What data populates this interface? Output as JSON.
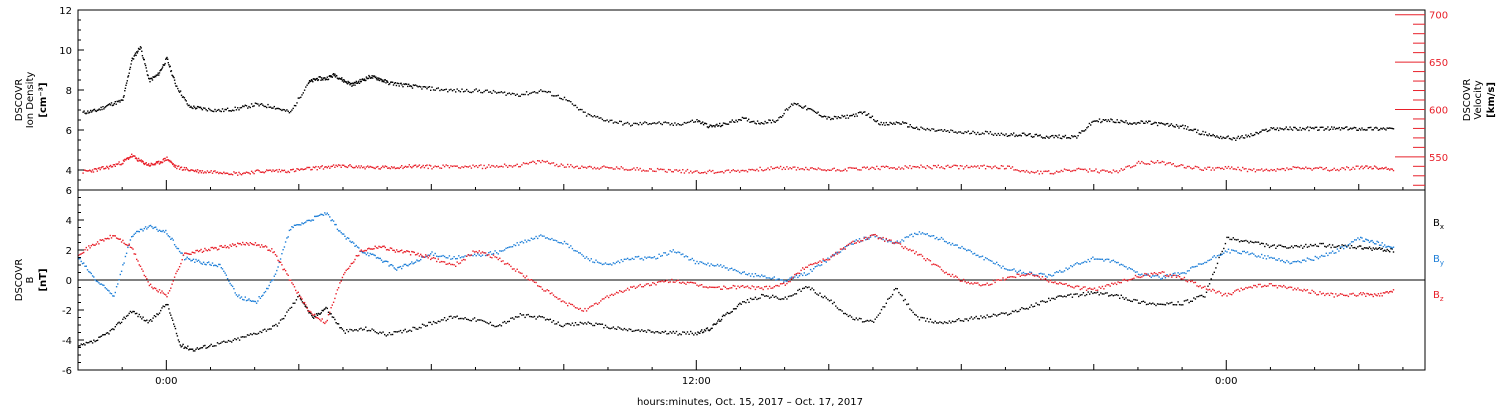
{
  "chart_data": [
    {
      "type": "scatter",
      "panel": "top",
      "ylabel_left": [
        "DSCOVR",
        "Ion Density",
        "[cm⁻³]"
      ],
      "ylabel_right": [
        "DSCOVR",
        "Velocity",
        "[km/s]"
      ],
      "ylim_left": [
        3,
        12
      ],
      "yticks_left": [
        4,
        6,
        8,
        10,
        12
      ],
      "ylim_right": [
        515,
        705
      ],
      "yticks_right": [
        550,
        600,
        650,
        700
      ],
      "colors": {
        "density": "#000000",
        "velocity": "#e8202a"
      },
      "series": [
        {
          "axis": "left",
          "color": "#000000",
          "x": [
            -1.9,
            -1.6,
            -1.3,
            -1.0,
            -0.8,
            -0.6,
            -0.4,
            -0.2,
            0.0,
            0.2,
            0.5,
            0.8,
            1.2,
            1.6,
            2.0,
            2.4,
            2.8,
            3.2,
            3.4,
            3.6,
            3.8,
            4.0,
            4.2,
            4.4,
            4.6,
            4.8,
            5.0,
            5.3,
            5.6,
            6.0,
            6.5,
            7.0,
            7.5,
            8.0,
            8.5,
            9.0,
            9.5,
            10.0,
            10.5,
            11.0,
            11.5,
            12.0,
            12.3,
            12.6,
            13.0,
            13.4,
            13.8,
            14.2,
            14.6,
            15.0,
            15.4,
            15.8,
            16.2,
            16.6,
            17.0,
            17.5,
            18.0,
            18.5,
            19.0,
            19.4,
            19.8,
            20.2,
            20.6,
            21.0,
            21.4,
            21.8,
            22.2,
            22.6,
            23.0,
            23.4,
            23.8,
            24.2,
            24.6,
            25.0,
            25.4,
            25.8,
            26.2,
            26.6,
            27.0,
            27.4,
            27.8
          ],
          "y": [
            6.9,
            7.0,
            7.3,
            7.5,
            9.5,
            10.2,
            8.5,
            8.8,
            9.6,
            8.3,
            7.2,
            7.1,
            7.0,
            7.1,
            7.3,
            7.2,
            6.9,
            8.4,
            8.6,
            8.6,
            8.8,
            8.5,
            8.3,
            8.5,
            8.7,
            8.6,
            8.4,
            8.3,
            8.2,
            8.1,
            8.0,
            8.0,
            7.9,
            7.8,
            8.0,
            7.6,
            6.8,
            6.5,
            6.3,
            6.4,
            6.3,
            6.5,
            6.2,
            6.3,
            6.6,
            6.4,
            6.5,
            7.4,
            7.0,
            6.6,
            6.7,
            6.9,
            6.3,
            6.4,
            6.1,
            6.0,
            5.9,
            5.9,
            5.8,
            5.8,
            5.7,
            5.7,
            5.7,
            6.5,
            6.5,
            6.4,
            6.4,
            6.3,
            6.2,
            5.9,
            5.7,
            5.6,
            5.8,
            6.1,
            6.1,
            6.1,
            6.1,
            6.1,
            6.1,
            6.1,
            6.1
          ]
        },
        {
          "axis": "right",
          "color": "#e8202a",
          "x": [
            -1.9,
            -1.6,
            -1.3,
            -1.0,
            -0.8,
            -0.6,
            -0.4,
            -0.2,
            0.0,
            0.2,
            0.5,
            0.8,
            1.2,
            1.6,
            2.0,
            2.4,
            2.8,
            3.2,
            3.6,
            4.0,
            4.4,
            4.8,
            5.2,
            5.6,
            6.0,
            6.5,
            7.0,
            7.5,
            8.0,
            8.5,
            9.0,
            9.5,
            10.0,
            10.5,
            11.0,
            11.5,
            12.0,
            12.5,
            13.0,
            13.5,
            14.0,
            14.5,
            15.0,
            15.5,
            16.0,
            16.5,
            17.0,
            17.5,
            18.0,
            18.5,
            19.0,
            19.5,
            20.0,
            20.5,
            21.0,
            21.5,
            22.0,
            22.5,
            23.0,
            23.5,
            24.0,
            24.5,
            25.0,
            25.5,
            26.0,
            26.5,
            27.0,
            27.4,
            27.8
          ],
          "y": [
            535,
            537,
            540,
            545,
            552,
            546,
            542,
            544,
            549,
            540,
            537,
            535,
            535,
            533,
            535,
            536,
            536,
            538,
            540,
            541,
            540,
            539,
            540,
            541,
            540,
            541,
            540,
            541,
            542,
            546,
            541,
            540,
            539,
            538,
            537,
            536,
            535,
            535,
            536,
            538,
            539,
            538,
            537,
            538,
            539,
            539,
            540,
            540,
            540,
            540,
            540,
            535,
            534,
            537,
            536,
            535,
            544,
            545,
            541,
            538,
            539,
            537,
            536,
            539,
            538,
            537,
            540,
            539,
            538
          ]
        }
      ]
    },
    {
      "type": "scatter",
      "panel": "bottom",
      "ylabel": [
        "DSCOVR",
        "B",
        "[nT]"
      ],
      "ylim": [
        -6,
        6
      ],
      "yticks": [
        -6,
        -4,
        -2,
        0,
        2,
        4,
        6
      ],
      "zero_line": true,
      "xlabel": "hours:minutes, Oct. 15, 2017 – Oct. 17, 2017",
      "xtick_labels": [
        "0:00",
        "12:00",
        "0:00"
      ],
      "xtick_hours": [
        0,
        12,
        24
      ],
      "xlim_hours": [
        -2.0,
        28.5
      ],
      "legend": [
        "Bx",
        "By",
        "Bz"
      ],
      "legend_position": "right",
      "series": [
        {
          "name": "Bx",
          "color": "#000000",
          "x": [
            -2.0,
            -1.6,
            -1.2,
            -0.8,
            -0.4,
            0.0,
            0.3,
            0.6,
            1.0,
            1.5,
            2.0,
            2.5,
            3.0,
            3.3,
            3.6,
            4.0,
            4.5,
            5.0,
            5.5,
            6.0,
            6.5,
            7.0,
            7.5,
            8.0,
            8.5,
            9.0,
            9.5,
            10.0,
            10.5,
            11.0,
            11.5,
            12.0,
            12.3,
            12.6,
            13.0,
            13.5,
            14.0,
            14.5,
            15.0,
            15.5,
            16.0,
            16.5,
            17.0,
            17.5,
            18.0,
            18.5,
            19.0,
            19.5,
            20.0,
            20.5,
            21.0,
            21.5,
            22.0,
            22.5,
            23.0,
            23.5,
            24.0,
            24.5,
            25.0,
            25.5,
            26.0,
            26.5,
            27.0,
            27.4,
            27.8
          ],
          "y": [
            -4.4,
            -4.0,
            -3.2,
            -2.0,
            -2.8,
            -1.5,
            -4.3,
            -4.6,
            -4.3,
            -4.0,
            -3.5,
            -3.0,
            -1.0,
            -2.5,
            -1.8,
            -3.4,
            -3.2,
            -3.6,
            -3.3,
            -2.8,
            -2.4,
            -2.6,
            -3.0,
            -2.3,
            -2.5,
            -3.0,
            -2.8,
            -3.1,
            -3.3,
            -3.4,
            -3.5,
            -3.5,
            -3.2,
            -2.4,
            -1.5,
            -1.0,
            -1.2,
            -0.4,
            -1.3,
            -2.5,
            -2.8,
            -0.5,
            -2.5,
            -2.8,
            -2.6,
            -2.4,
            -2.2,
            -1.8,
            -1.2,
            -1.0,
            -0.8,
            -1.0,
            -1.4,
            -1.6,
            -1.5,
            -1.0,
            2.8,
            2.6,
            2.3,
            2.2,
            2.4,
            2.3,
            2.2,
            2.1,
            2.0
          ]
        },
        {
          "name": "By",
          "color": "#1e7fd8",
          "x": [
            -2.0,
            -1.6,
            -1.2,
            -0.8,
            -0.4,
            0.0,
            0.4,
            0.8,
            1.2,
            1.6,
            2.0,
            2.4,
            2.8,
            3.2,
            3.6,
            4.0,
            4.4,
            4.8,
            5.2,
            5.6,
            6.0,
            6.5,
            7.0,
            7.5,
            8.0,
            8.5,
            9.0,
            9.5,
            10.0,
            10.5,
            11.0,
            11.5,
            12.0,
            12.5,
            13.0,
            13.5,
            14.0,
            14.5,
            15.0,
            15.5,
            16.0,
            16.5,
            17.0,
            17.5,
            18.0,
            18.5,
            19.0,
            19.5,
            20.0,
            20.5,
            21.0,
            21.5,
            22.0,
            22.5,
            23.0,
            23.5,
            24.0,
            24.5,
            25.0,
            25.5,
            26.0,
            26.5,
            27.0,
            27.4,
            27.8
          ],
          "y": [
            1.5,
            0.0,
            -1.0,
            3.0,
            3.6,
            3.2,
            1.5,
            1.2,
            1.0,
            -1.0,
            -1.5,
            0.0,
            3.5,
            4.0,
            4.5,
            3.0,
            2.0,
            1.5,
            0.8,
            1.2,
            1.8,
            1.5,
            1.7,
            1.9,
            2.5,
            3.0,
            2.5,
            1.5,
            1.0,
            1.5,
            1.5,
            2.0,
            1.2,
            1.0,
            0.5,
            0.3,
            0.0,
            0.5,
            1.5,
            2.5,
            3.0,
            2.5,
            3.2,
            2.8,
            2.2,
            1.5,
            0.8,
            0.5,
            0.3,
            1.0,
            1.5,
            1.2,
            0.5,
            0.2,
            0.5,
            1.2,
            2.0,
            1.8,
            1.5,
            1.2,
            1.5,
            2.0,
            2.8,
            2.5,
            2.2
          ]
        },
        {
          "name": "Bz",
          "color": "#e8202a",
          "x": [
            -2.0,
            -1.6,
            -1.2,
            -0.8,
            -0.4,
            0.0,
            0.4,
            0.8,
            1.2,
            1.6,
            2.0,
            2.4,
            2.8,
            3.2,
            3.6,
            4.0,
            4.4,
            4.8,
            5.2,
            5.6,
            6.0,
            6.5,
            7.0,
            7.5,
            8.0,
            8.5,
            9.0,
            9.5,
            10.0,
            10.5,
            11.0,
            11.5,
            12.0,
            12.5,
            13.0,
            13.5,
            14.0,
            14.5,
            15.0,
            15.5,
            16.0,
            16.5,
            17.0,
            17.5,
            18.0,
            18.5,
            19.0,
            19.5,
            20.0,
            20.5,
            21.0,
            21.5,
            22.0,
            22.5,
            23.0,
            23.5,
            24.0,
            24.5,
            25.0,
            25.5,
            26.0,
            26.5,
            27.0,
            27.4,
            27.8
          ],
          "y": [
            1.8,
            2.5,
            3.0,
            2.2,
            -0.3,
            -1.0,
            1.8,
            2.0,
            2.2,
            2.4,
            2.5,
            2.0,
            0.0,
            -2.0,
            -2.8,
            0.5,
            2.0,
            2.3,
            2.0,
            1.8,
            1.5,
            1.0,
            2.0,
            1.5,
            0.5,
            -0.5,
            -1.5,
            -2.0,
            -1.0,
            -0.5,
            -0.2,
            0.0,
            -0.3,
            -0.5,
            -0.4,
            -0.5,
            -0.2,
            1.0,
            1.5,
            2.5,
            3.0,
            2.5,
            1.8,
            0.8,
            0.0,
            -0.3,
            0.2,
            0.5,
            0.0,
            -0.4,
            -0.6,
            -0.2,
            0.3,
            0.5,
            0.2,
            -0.5,
            -1.0,
            -0.4,
            -0.3,
            -0.5,
            -0.8,
            -1.0,
            -0.9,
            -1.0,
            -0.7
          ]
        }
      ]
    }
  ]
}
